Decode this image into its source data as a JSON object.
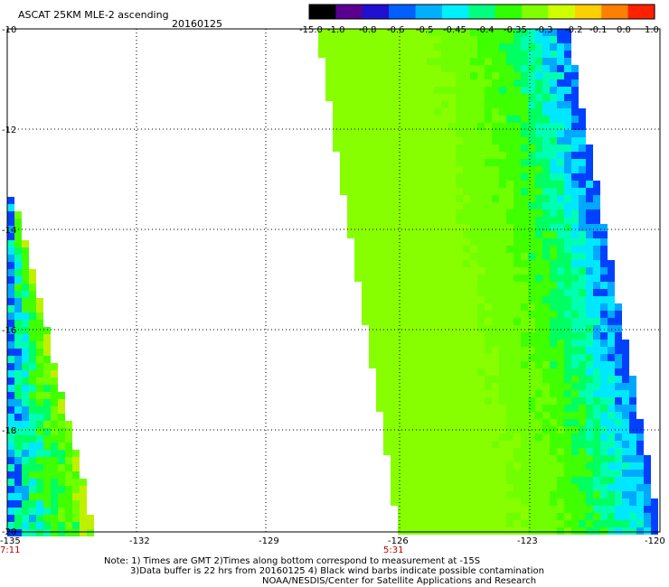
{
  "header": {
    "title": "ASCAT 25KM MLE-2 ascending",
    "date": "20160125"
  },
  "colorbar": {
    "labels": [
      "-15.0",
      "-1.0",
      "-0.8",
      "-0.6",
      "-0.5",
      "-0.45",
      "-0.4",
      "-0.35",
      "-0.3",
      "-0.2",
      "-0.1",
      "0.0",
      "1.0"
    ],
    "colors": [
      "#000000",
      "#5a0090",
      "#2010d0",
      "#0060ff",
      "#00b0ff",
      "#00f0ff",
      "#00ff80",
      "#30ff00",
      "#80ff00",
      "#d0ff00",
      "#ffd000",
      "#ff8000",
      "#ff2000"
    ]
  },
  "axes": {
    "lat_labels": [
      "-10",
      "-12",
      "-14",
      "-16",
      "-18",
      "-20"
    ],
    "lon_labels": [
      "-135",
      "-132",
      "-129",
      "-126",
      "-123",
      "-120"
    ],
    "time_labels": [
      {
        "lon": "-135",
        "text": "7:11"
      },
      {
        "lon": "-126",
        "text": "5:31"
      }
    ]
  },
  "notes": {
    "line1": "Note: 1) Times are GMT 2)Times along bottom correspond to measurement at -15S",
    "line2": "3)Data buffer is 22 hrs from 20160125 4) Black wind barbs indicate possible contamination",
    "line3": "NOAA/NESDIS/Center for Satellite Applications and Research"
  }
}
